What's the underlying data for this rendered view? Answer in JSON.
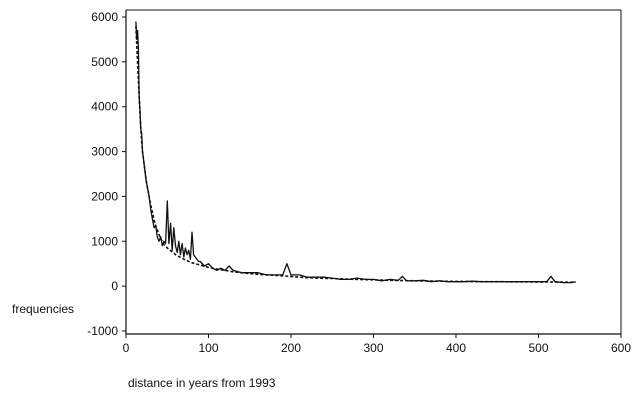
{
  "chart_data": {
    "type": "line",
    "title": "",
    "xlabel": "distance in years from 1993",
    "ylabel": "frequencies",
    "xlim": [
      0,
      600
    ],
    "ylim": [
      -1000,
      6000
    ],
    "xticks": [
      0,
      100,
      200,
      300,
      400,
      500,
      600
    ],
    "yticks": [
      6000,
      5000,
      4000,
      3000,
      2000,
      1000,
      0,
      -1000
    ],
    "xtick_labels": [
      "0",
      "100",
      "200",
      "300",
      "400",
      "500",
      "600"
    ],
    "ytick_labels": [
      "6000",
      "5000",
      "4000",
      "3000",
      "2000",
      "1000",
      "0",
      "-1000"
    ],
    "grid": false,
    "legend": "none",
    "series": [
      {
        "style": "solid",
        "color": "#111111",
        "x": [
          12,
          13,
          14,
          15,
          16,
          17,
          18,
          19,
          20,
          22,
          24,
          26,
          28,
          30,
          32,
          34,
          36,
          38,
          40,
          42,
          44,
          46,
          48,
          50,
          52,
          54,
          56,
          58,
          60,
          62,
          64,
          66,
          68,
          70,
          72,
          74,
          76,
          78,
          80,
          82,
          84,
          86,
          88,
          90,
          95,
          100,
          105,
          110,
          115,
          120,
          125,
          130,
          140,
          150,
          160,
          170,
          180,
          190,
          195,
          200,
          210,
          220,
          230,
          240,
          250,
          260,
          270,
          280,
          290,
          300,
          310,
          320,
          330,
          335,
          340,
          350,
          360,
          370,
          380,
          390,
          400,
          410,
          420,
          430,
          440,
          450,
          460,
          470,
          480,
          490,
          500,
          510,
          515,
          520,
          530,
          540,
          545
        ],
        "values": [
          5900,
          5500,
          5700,
          5300,
          4200,
          3900,
          3500,
          3400,
          3000,
          2700,
          2400,
          2200,
          2000,
          1700,
          1500,
          1300,
          1350,
          1100,
          1000,
          1100,
          900,
          1000,
          950,
          1900,
          950,
          1400,
          800,
          1300,
          900,
          750,
          1000,
          700,
          950,
          650,
          850,
          700,
          800,
          600,
          1200,
          700,
          650,
          600,
          550,
          550,
          450,
          500,
          400,
          350,
          400,
          350,
          450,
          350,
          300,
          300,
          300,
          250,
          250,
          250,
          500,
          250,
          250,
          200,
          200,
          200,
          180,
          150,
          150,
          180,
          150,
          150,
          120,
          150,
          130,
          220,
          120,
          120,
          130,
          100,
          120,
          100,
          100,
          100,
          110,
          100,
          100,
          100,
          100,
          100,
          100,
          100,
          100,
          100,
          220,
          100,
          80,
          80,
          100
        ]
      },
      {
        "style": "dashed",
        "color": "#111111",
        "x": [
          12,
          15,
          18,
          20,
          25,
          30,
          35,
          40,
          45,
          50,
          55,
          60,
          70,
          80,
          90,
          100,
          110,
          120,
          130,
          140,
          150,
          170,
          190,
          210,
          230,
          250,
          270,
          290,
          310,
          330,
          350,
          370,
          390,
          410,
          430,
          450,
          470,
          490,
          510,
          530,
          545
        ],
        "values": [
          5800,
          4600,
          3500,
          3000,
          2300,
          1800,
          1400,
          1150,
          950,
          850,
          780,
          700,
          600,
          520,
          470,
          420,
          380,
          350,
          320,
          300,
          280,
          250,
          230,
          200,
          180,
          170,
          155,
          145,
          135,
          125,
          118,
          112,
          108,
          104,
          100,
          98,
          96,
          94,
          92,
          90,
          88
        ]
      }
    ]
  }
}
